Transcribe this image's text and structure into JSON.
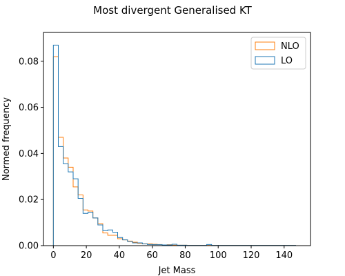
{
  "chart_data": {
    "type": "histogram",
    "title": "Most divergent Generalised KT",
    "xlabel": "Jet Mass",
    "ylabel": "Normed frequency",
    "xlim": [
      -6,
      156
    ],
    "ylim": [
      0,
      0.0925
    ],
    "xticks": [
      0,
      20,
      40,
      60,
      80,
      100,
      120,
      140
    ],
    "yticks": [
      0.0,
      0.02,
      0.04,
      0.06,
      0.08
    ],
    "ytick_labels": [
      "0.00",
      "0.02",
      "0.04",
      "0.06",
      "0.08"
    ],
    "legend_position": "top-right",
    "bin_edges": [
      0,
      3,
      6,
      9,
      12,
      15,
      18,
      21,
      24,
      27,
      30,
      33,
      36,
      39,
      42,
      45,
      48,
      51,
      54,
      57,
      60,
      63,
      66,
      69,
      72,
      75,
      78,
      81,
      84,
      87,
      90,
      93,
      96,
      99,
      102,
      105,
      108,
      111,
      114,
      117,
      120,
      123,
      126,
      129,
      132,
      135,
      138,
      141,
      144,
      147,
      150
    ],
    "series": [
      {
        "name": "NLO",
        "color": "#ff7f0e",
        "values": [
          0.082,
          0.047,
          0.038,
          0.034,
          0.0255,
          0.022,
          0.0155,
          0.015,
          0.012,
          0.0095,
          0.0055,
          0.0045,
          0.0045,
          0.003,
          0.0025,
          0.002,
          0.0015,
          0.001,
          0.0008,
          0.0008,
          0.0006,
          0.0005,
          0.0003,
          0.0004,
          0.0002,
          0.0002,
          0.0002,
          0.0001,
          0.0001,
          0.0001,
          0.0001,
          0.0001,
          0.0001,
          0.0001,
          0.0001,
          0.0001,
          0.0001,
          0.0001,
          0.0001,
          0.0001,
          0.0001,
          0.0001,
          0.0001,
          0.0001,
          0.0001,
          0.0001,
          0.0001,
          0.0001,
          0.0001,
          0.0
        ]
      },
      {
        "name": "LO",
        "color": "#1f77b4",
        "values": [
          0.087,
          0.043,
          0.0355,
          0.032,
          0.029,
          0.0205,
          0.014,
          0.0145,
          0.012,
          0.009,
          0.0065,
          0.0068,
          0.0058,
          0.0035,
          0.0025,
          0.0018,
          0.0012,
          0.0012,
          0.0008,
          0.0005,
          0.0004,
          0.0004,
          0.0003,
          0.0003,
          0.0006,
          0.0002,
          0.0002,
          0.0001,
          0.0001,
          0.0001,
          0.0001,
          0.0005,
          0.0001,
          0.0001,
          0.0001,
          0.0001,
          0.0001,
          0.0001,
          0.0001,
          0.0001,
          0.0001,
          0.0001,
          0.0001,
          0.0001,
          0.0001,
          0.0001,
          0.0001,
          0.0001,
          0.0001,
          0.0
        ]
      }
    ]
  }
}
